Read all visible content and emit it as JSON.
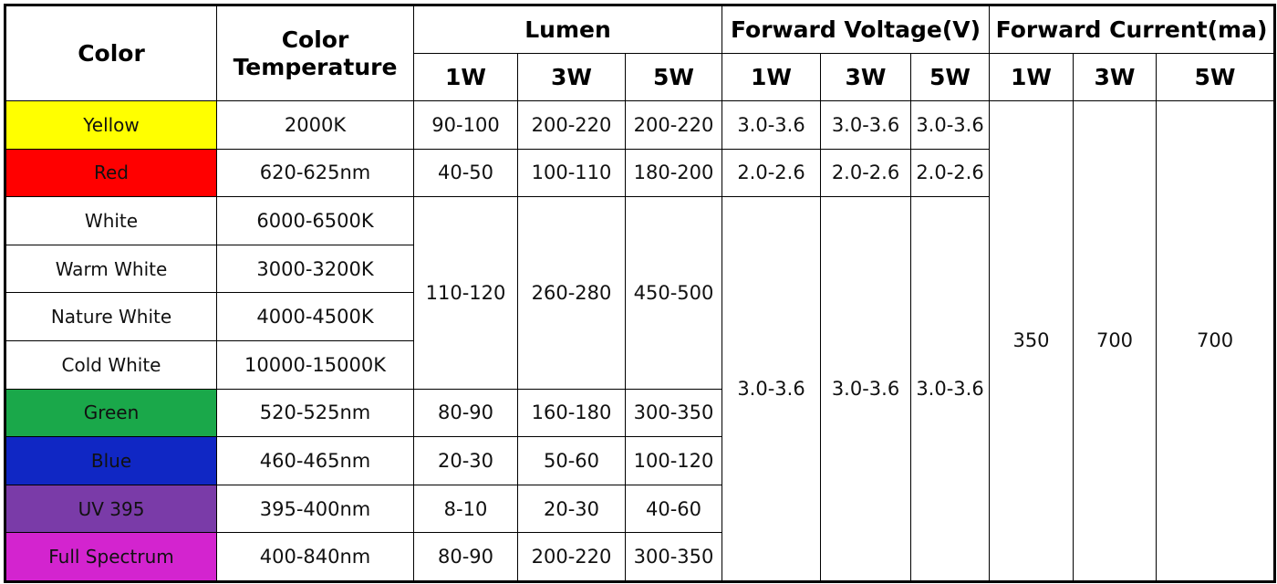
{
  "header": {
    "color": "Color",
    "temperature": "Color Temperature",
    "groups": [
      {
        "title": "Lumen",
        "columns": [
          "1W",
          "3W",
          "5W"
        ]
      },
      {
        "title": "Forward Voltage(V)",
        "columns": [
          "1W",
          "3W",
          "5W"
        ]
      },
      {
        "title": "Forward Current(ma)",
        "columns": [
          "1W",
          "3W",
          "5W"
        ]
      }
    ]
  },
  "rows": [
    [
      "Yellow",
      "2000K",
      "90-100",
      "200-220",
      "200-220",
      "3.0-3.6",
      "3.0-3.6",
      "3.0-3.6",
      "350",
      "700",
      "700"
    ],
    [
      "Red",
      "620-625nm",
      "40-50",
      "100-110",
      "180-200",
      "2.0-2.6",
      "2.0-2.6",
      "2.0-2.6"
    ],
    [
      "White",
      "6000-6500K",
      "110-120",
      "260-280",
      "450-500",
      "3.0-3.6",
      "3.0-3.6",
      "3.0-3.6"
    ],
    [
      "Warm White",
      "3000-3200K"
    ],
    [
      "Nature White",
      "4000-4500K"
    ],
    [
      "Cold White",
      "10000-15000K"
    ],
    [
      "Green",
      "520-525nm",
      "80-90",
      "160-180",
      "300-350"
    ],
    [
      "Blue",
      "460-465nm",
      "20-30",
      "50-60",
      "100-120"
    ],
    [
      "UV 395",
      "395-400nm",
      "8-10",
      "20-30",
      "40-60"
    ],
    [
      "Full Spectrum",
      "400-840nm",
      "80-90",
      "200-220",
      "300-350"
    ]
  ]
}
